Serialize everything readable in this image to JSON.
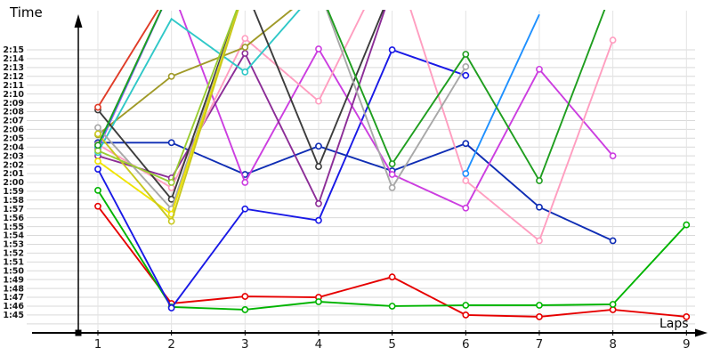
{
  "chart_data": {
    "type": "line",
    "title": "",
    "xlabel": "Laps",
    "ylabel": "Time",
    "x": [
      1,
      2,
      3,
      4,
      5,
      6,
      7,
      8,
      9
    ],
    "x_tick_labels": [
      "1",
      "2",
      "3",
      "4",
      "5",
      "6",
      "7",
      "8",
      "9"
    ],
    "y_tick_labels": [
      "2:15",
      "2:14",
      "2:13",
      "2:12",
      "2:11",
      "2:10",
      "2:09",
      "2:08",
      "2:07",
      "2:06",
      "2:05",
      "2:04",
      "2:03",
      "2:02",
      "2:01",
      "2:00",
      "1:59",
      "1:58",
      "1:57",
      "1:56",
      "1:55",
      "1:54",
      "1:53",
      "1:52",
      "1:51",
      "1:50",
      "1:49",
      "1:48",
      "1:47",
      "1:46",
      "1:45"
    ],
    "y_axis": {
      "unit": "m:ss",
      "top_value_seconds": 135,
      "bottom_value_seconds": 105,
      "tick_step_seconds": 1,
      "extra_unlabeled_gridline_seconds": 104
    },
    "grid": true,
    "legend": "none",
    "note_values": "lap times in seconds; null = not shown; values > 138 run off the top of the chart",
    "series": [
      {
        "name": "red",
        "color": "#e60000",
        "values": [
          117.3,
          106.3,
          107.1,
          107.0,
          109.3,
          105.0,
          104.8,
          105.6,
          104.8
        ]
      },
      {
        "name": "green",
        "color": "#00b400",
        "values": [
          119.1,
          105.9,
          105.6,
          106.5,
          106.0,
          106.1,
          106.1,
          106.2,
          115.2
        ]
      },
      {
        "name": "blue",
        "color": "#1919e6",
        "values": [
          121.5,
          105.8,
          117.0,
          115.7,
          135.0,
          132.1,
          null,
          null,
          null
        ]
      },
      {
        "name": "navy",
        "color": "#0f2db4",
        "values": [
          124.5,
          124.5,
          120.9,
          124.1,
          121.3,
          124.4,
          117.2,
          113.4,
          null
        ]
      },
      {
        "name": "magenta",
        "color": "#cc3ee0",
        "values": [
          123.8,
          142,
          120.0,
          135.1,
          120.9,
          117.1,
          132.8,
          123.0,
          null
        ]
      },
      {
        "name": "purple",
        "color": "#8c2d97",
        "values": [
          123.0,
          120.5,
          134.6,
          117.6,
          142,
          null,
          null,
          null,
          null
        ]
      },
      {
        "name": "pink",
        "color": "#ff9ec0",
        "values": [
          124.3,
          119.4,
          136.3,
          129.2,
          146,
          120.2,
          113.4,
          136.1,
          null
        ]
      },
      {
        "name": "olive",
        "color": "#a09a28",
        "values": [
          125.4,
          132.0,
          135.3,
          142,
          null,
          null,
          null,
          null,
          null
        ]
      },
      {
        "name": "cyan",
        "color": "#30c8c8",
        "values": [
          123.4,
          138.5,
          132.5,
          142,
          null,
          null,
          null,
          null,
          null
        ]
      },
      {
        "name": "skyblue",
        "color": "#1e90ff",
        "values": [
          124.0,
          142,
          null,
          null,
          null,
          121.0,
          139,
          null,
          null
        ]
      },
      {
        "name": "black",
        "color": "#3c3c3c",
        "values": [
          128.2,
          118.1,
          142,
          121.8,
          142,
          null,
          null,
          null,
          null
        ]
      },
      {
        "name": "gray",
        "color": "#a8a8a8",
        "values": [
          126.2,
          117.0,
          142,
          142,
          119.4,
          133.1,
          null,
          null,
          null
        ]
      },
      {
        "name": "yellow",
        "color": "#f0e400",
        "values": [
          122.4,
          116.4,
          142,
          null,
          null,
          null,
          null,
          null,
          null
        ]
      },
      {
        "name": "gold",
        "color": "#c8c81e",
        "values": [
          125.5,
          115.6,
          142,
          null,
          null,
          null,
          null,
          null,
          null
        ]
      },
      {
        "name": "lightgreen",
        "color": "#9acd32",
        "values": [
          123.6,
          120.0,
          142,
          null,
          null,
          null,
          null,
          null,
          null
        ]
      },
      {
        "name": "darkgreen",
        "color": "#1f9e1f",
        "values": [
          124.2,
          142,
          142,
          142,
          122.1,
          134.5,
          120.2,
          142,
          null
        ]
      },
      {
        "name": "orange",
        "color": "#e03c28",
        "values": [
          128.5,
          142,
          null,
          null,
          null,
          null,
          null,
          null,
          null
        ]
      }
    ]
  },
  "layout_colors": {
    "background": "#ffffff",
    "h_gridline": "#d9d9d9",
    "v_gridline": "#e3e3e3",
    "axis": "#000000",
    "tick_label": "#1a1a1a"
  }
}
